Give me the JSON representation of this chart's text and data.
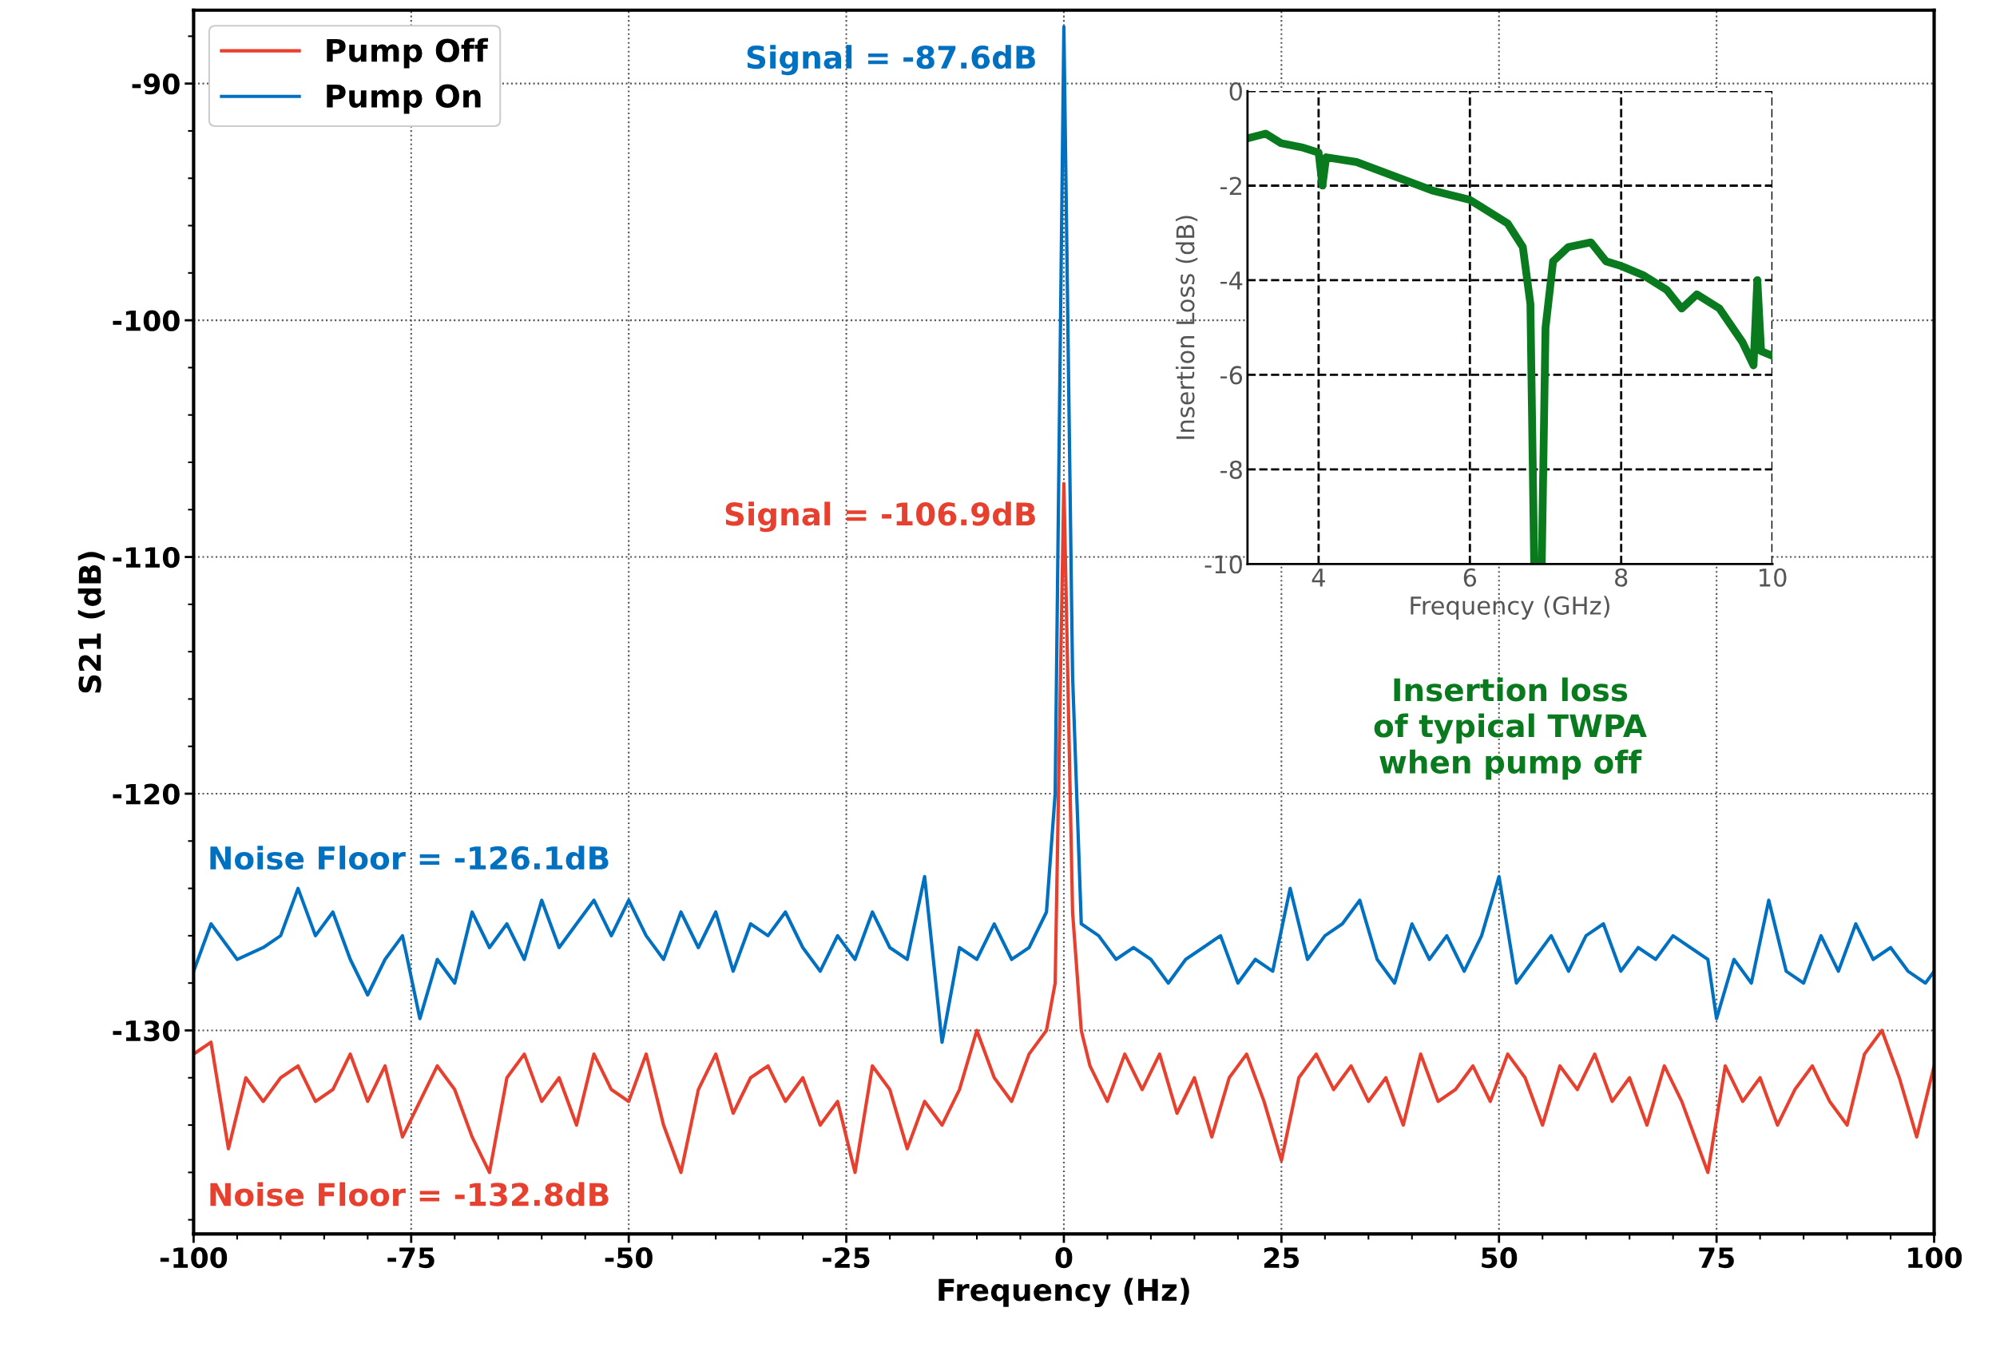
{
  "chart_data": [
    {
      "type": "line",
      "xlabel": "Frequency (Hz)",
      "ylabel": "S21 (dB)",
      "xlim": [
        -100,
        100
      ],
      "xticks": [
        -100,
        -75,
        -50,
        -25,
        0,
        25,
        50,
        75,
        100
      ],
      "ylim": [
        -138.6,
        -86.9
      ],
      "yticks": [
        -130,
        -120,
        -110,
        -100,
        -90
      ],
      "grid": true,
      "legend": "top left",
      "series": [
        {
          "name": "Pump Off",
          "color": "#e8402f",
          "x": [
            -100,
            -98,
            -96,
            -94,
            -92,
            -90,
            -88,
            -86,
            -84,
            -82,
            -80,
            -78,
            -76,
            -74,
            -72,
            -70,
            -68,
            -66,
            -64,
            -62,
            -60,
            -58,
            -56,
            -54,
            -52,
            -50,
            -48,
            -46,
            -44,
            -42,
            -40,
            -38,
            -36,
            -34,
            -32,
            -30,
            -28,
            -26,
            -24,
            -22,
            -20,
            -18,
            -16,
            -14,
            -12,
            -10,
            -8,
            -6,
            -4,
            -2,
            -1,
            0,
            1,
            2,
            3,
            5,
            7,
            9,
            11,
            13,
            15,
            17,
            19,
            21,
            23,
            25,
            27,
            29,
            31,
            33,
            35,
            37,
            39,
            41,
            43,
            45,
            47,
            49,
            51,
            53,
            55,
            57,
            59,
            61,
            63,
            65,
            67,
            69,
            71,
            73,
            74,
            76,
            78,
            80,
            82,
            84,
            86,
            88,
            90,
            92,
            94,
            96,
            98,
            100
          ],
          "values": [
            -131,
            -130.5,
            -135,
            -132,
            -133,
            -132,
            -131.5,
            -133,
            -132.5,
            -131,
            -133,
            -131.5,
            -134.5,
            -133,
            -131.5,
            -132.5,
            -134.5,
            -136,
            -132,
            -131,
            -133,
            -132,
            -134,
            -131,
            -132.5,
            -133,
            -131,
            -134,
            -136,
            -132.5,
            -131,
            -133.5,
            -132,
            -131.5,
            -133,
            -132,
            -134,
            -133,
            -136,
            -131.5,
            -132.5,
            -135,
            -133,
            -134,
            -132.5,
            -130,
            -132,
            -133,
            -131,
            -130,
            -128,
            -106.9,
            -125,
            -130,
            -131.5,
            -133,
            -131,
            -132.5,
            -131,
            -133.5,
            -132,
            -134.5,
            -132,
            -131,
            -133,
            -135.5,
            -132,
            -131,
            -132.5,
            -131.5,
            -133,
            -132,
            -134,
            -131,
            -133,
            -132.5,
            -131.5,
            -133,
            -131,
            -132,
            -134,
            -131.5,
            -132.5,
            -131,
            -133,
            -132,
            -134,
            -131.5,
            -133,
            -135,
            -136,
            -131.5,
            -133,
            -132,
            -134,
            -132.5,
            -131.5,
            -133,
            -134,
            -131,
            -130,
            -132,
            -134.5,
            -131.5
          ]
        },
        {
          "name": "Pump On",
          "color": "#0070c0",
          "x": [
            -100,
            -98,
            -95,
            -92,
            -90,
            -88,
            -86,
            -84,
            -82,
            -80,
            -78,
            -76,
            -74,
            -72,
            -70,
            -68,
            -66,
            -64,
            -62,
            -60,
            -58,
            -56,
            -54,
            -52,
            -50,
            -48,
            -46,
            -44,
            -42,
            -40,
            -38,
            -36,
            -34,
            -32,
            -30,
            -28,
            -26,
            -24,
            -22,
            -20,
            -18,
            -16,
            -14,
            -12,
            -10,
            -8,
            -6,
            -4,
            -2,
            -1,
            0,
            1,
            2,
            4,
            6,
            8,
            10,
            12,
            14,
            16,
            18,
            20,
            22,
            24,
            26,
            28,
            30,
            32,
            34,
            36,
            38,
            40,
            42,
            44,
            46,
            48,
            50,
            52,
            54,
            56,
            58,
            60,
            62,
            64,
            66,
            68,
            70,
            72,
            74,
            75,
            77,
            79,
            81,
            83,
            85,
            87,
            89,
            91,
            93,
            95,
            97,
            99,
            100
          ],
          "values": [
            -127.5,
            -125.5,
            -127,
            -126.5,
            -126,
            -124,
            -126,
            -125,
            -127,
            -128.5,
            -127,
            -126,
            -129.5,
            -127,
            -128,
            -125,
            -126.5,
            -125.5,
            -127,
            -124.5,
            -126.5,
            -125.5,
            -124.5,
            -126,
            -124.5,
            -126,
            -127,
            -125,
            -126.5,
            -125,
            -127.5,
            -125.5,
            -126,
            -125,
            -126.5,
            -127.5,
            -126,
            -127,
            -125,
            -126.5,
            -127,
            -123.5,
            -130.5,
            -126.5,
            -127,
            -125.5,
            -127,
            -126.5,
            -125,
            -120,
            -87.6,
            -115,
            -125.5,
            -126,
            -127,
            -126.5,
            -127,
            -128,
            -127,
            -126.5,
            -126,
            -128,
            -127,
            -127.5,
            -124,
            -127,
            -126,
            -125.5,
            -124.5,
            -127,
            -128,
            -125.5,
            -127,
            -126,
            -127.5,
            -126,
            -123.5,
            -128,
            -127,
            -126,
            -127.5,
            -126,
            -125.5,
            -127.5,
            -126.5,
            -127,
            -126,
            -126.5,
            -127,
            -129.5,
            -127,
            -128,
            -124.5,
            -127.5,
            -128,
            -126,
            -127.5,
            -125.5,
            -127,
            -126.5,
            -127.5,
            -128,
            -127.5
          ]
        }
      ],
      "annotations": [
        {
          "text": "Signal = -87.6dB",
          "x": 0,
          "y": -87.6
        },
        {
          "text": "Signal = -106.9dB",
          "x": 0,
          "y": -106.9
        },
        "Noise Floor = -126.1dB",
        "Noise Floor = -132.8dB"
      ]
    },
    {
      "type": "line",
      "xlabel": "Frequency (GHz)",
      "ylabel": "Insertion Loss (dB)",
      "xlim": [
        3.06,
        10
      ],
      "xticks": [
        4,
        6,
        8,
        10
      ],
      "ylim": [
        -10,
        0
      ],
      "yticks": [
        -10,
        -8,
        -6,
        -4,
        -2,
        0
      ],
      "grid": true,
      "series": [
        {
          "color": "#0a7a1e",
          "x": [
            3.06,
            3.3,
            3.5,
            3.8,
            4.0,
            4.05,
            4.1,
            4.5,
            5.0,
            5.5,
            6.0,
            6.2,
            6.5,
            6.7,
            6.8,
            6.85,
            6.95,
            7.0,
            7.1,
            7.3,
            7.6,
            7.8,
            8.0,
            8.3,
            8.6,
            8.8,
            9.0,
            9.3,
            9.6,
            9.75,
            9.8,
            9.85,
            10
          ],
          "values": [
            -1.0,
            -0.9,
            -1.1,
            -1.2,
            -1.3,
            -2.0,
            -1.4,
            -1.5,
            -1.8,
            -2.1,
            -2.3,
            -2.5,
            -2.8,
            -3.3,
            -4.5,
            -10,
            -10,
            -5,
            -3.6,
            -3.3,
            -3.2,
            -3.6,
            -3.7,
            -3.9,
            -4.2,
            -4.6,
            -4.3,
            -4.6,
            -5.3,
            -5.8,
            -4.0,
            -5.5,
            -5.6
          ]
        }
      ],
      "annotations": [
        "Insertion loss\nof typical TWPA\nwhen pump off"
      ]
    }
  ]
}
